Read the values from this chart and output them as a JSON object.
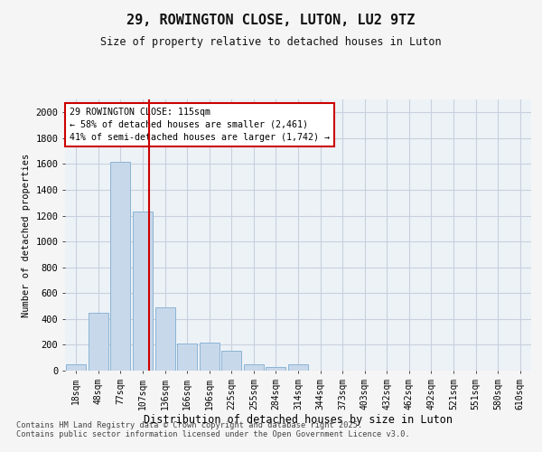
{
  "title": "29, ROWINGTON CLOSE, LUTON, LU2 9TZ",
  "subtitle": "Size of property relative to detached houses in Luton",
  "xlabel": "Distribution of detached houses by size in Luton",
  "ylabel": "Number of detached properties",
  "categories": [
    "18sqm",
    "48sqm",
    "77sqm",
    "107sqm",
    "136sqm",
    "166sqm",
    "196sqm",
    "225sqm",
    "255sqm",
    "284sqm",
    "314sqm",
    "344sqm",
    "373sqm",
    "403sqm",
    "432sqm",
    "462sqm",
    "492sqm",
    "521sqm",
    "551sqm",
    "580sqm",
    "610sqm"
  ],
  "values": [
    50,
    450,
    1620,
    1230,
    490,
    210,
    215,
    155,
    50,
    30,
    50,
    0,
    0,
    0,
    0,
    0,
    0,
    0,
    0,
    0,
    0
  ],
  "bar_color": "#c8d8eb",
  "bar_edge_color": "#8ab4d4",
  "vline_x": 3.27,
  "vline_color": "#cc0000",
  "annotation_text": "29 ROWINGTON CLOSE: 115sqm\n← 58% of detached houses are smaller (2,461)\n41% of semi-detached houses are larger (1,742) →",
  "annotation_box_color": "#ffffff",
  "annotation_box_edge": "#cc0000",
  "ylim": [
    0,
    2100
  ],
  "yticks": [
    0,
    200,
    400,
    600,
    800,
    1000,
    1200,
    1400,
    1600,
    1800,
    2000
  ],
  "grid_color": "#c8d0dc",
  "background_color": "#edf2f7",
  "footer_line1": "Contains HM Land Registry data © Crown copyright and database right 2025.",
  "footer_line2": "Contains public sector information licensed under the Open Government Licence v3.0."
}
